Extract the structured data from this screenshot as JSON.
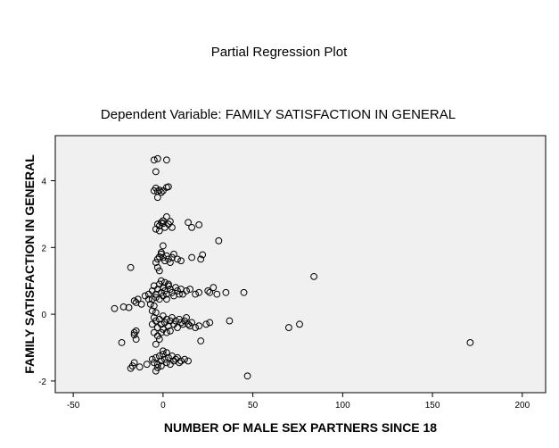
{
  "chart_data": {
    "type": "scatter",
    "title": "Partial Regression Plot",
    "subtitle": "Dependent Variable: FAMILY SATISFACTION IN GENERAL",
    "xlabel": "NUMBER OF MALE SEX PARTNERS SINCE 18",
    "ylabel": "FAMILY SATISFACTION IN GENERAL",
    "xlim": [
      -60,
      213
    ],
    "ylim": [
      -2.35,
      5.35
    ],
    "xticks": [
      -50,
      0,
      50,
      100,
      150,
      200
    ],
    "yticks": [
      -2,
      0,
      2,
      4
    ],
    "grid": false,
    "plot_background": "#f0f0f0",
    "marker": "open-circle",
    "points": [
      [
        -5,
        4.62
      ],
      [
        -3,
        4.66
      ],
      [
        2,
        4.62
      ],
      [
        -4,
        4.27
      ],
      [
        -5,
        3.7
      ],
      [
        -3,
        3.68
      ],
      [
        -2,
        3.72
      ],
      [
        0,
        3.7
      ],
      [
        2,
        3.8
      ],
      [
        3,
        3.82
      ],
      [
        -3,
        3.5
      ],
      [
        -1,
        3.65
      ],
      [
        -4,
        3.78
      ],
      [
        -4,
        2.55
      ],
      [
        -3,
        2.7
      ],
      [
        -2,
        2.65
      ],
      [
        -1,
        2.75
      ],
      [
        0,
        2.72
      ],
      [
        1,
        2.6
      ],
      [
        2,
        2.92
      ],
      [
        3,
        2.7
      ],
      [
        4,
        2.78
      ],
      [
        5,
        2.6
      ],
      [
        -2,
        2.5
      ],
      [
        0,
        2.8
      ],
      [
        14,
        2.75
      ],
      [
        16,
        2.6
      ],
      [
        20,
        2.68
      ],
      [
        31,
        2.2
      ],
      [
        0,
        2.05
      ],
      [
        -4,
        1.55
      ],
      [
        -3,
        1.65
      ],
      [
        -2,
        1.72
      ],
      [
        -1,
        1.8
      ],
      [
        0,
        1.7
      ],
      [
        1,
        1.6
      ],
      [
        2,
        1.75
      ],
      [
        3,
        1.65
      ],
      [
        4,
        1.55
      ],
      [
        5,
        1.7
      ],
      [
        6,
        1.8
      ],
      [
        8,
        1.65
      ],
      [
        10,
        1.6
      ],
      [
        16,
        1.7
      ],
      [
        21,
        1.65
      ],
      [
        22,
        1.78
      ],
      [
        -18,
        1.4
      ],
      [
        -3,
        1.4
      ],
      [
        -2,
        1.3
      ],
      [
        -1,
        1.85
      ],
      [
        -8,
        0.6
      ],
      [
        -6,
        0.7
      ],
      [
        -5,
        0.85
      ],
      [
        -4,
        0.6
      ],
      [
        -3,
        0.75
      ],
      [
        -2,
        0.9
      ],
      [
        -1,
        0.65
      ],
      [
        0,
        0.8
      ],
      [
        1,
        0.7
      ],
      [
        2,
        0.6
      ],
      [
        3,
        0.85
      ],
      [
        4,
        0.75
      ],
      [
        5,
        0.65
      ],
      [
        6,
        0.55
      ],
      [
        7,
        0.8
      ],
      [
        8,
        0.7
      ],
      [
        9,
        0.6
      ],
      [
        10,
        0.75
      ],
      [
        11,
        0.6
      ],
      [
        13,
        0.7
      ],
      [
        15,
        0.75
      ],
      [
        18,
        0.6
      ],
      [
        20,
        0.65
      ],
      [
        25,
        0.7
      ],
      [
        26,
        0.65
      ],
      [
        28,
        0.8
      ],
      [
        30,
        0.6
      ],
      [
        35,
        0.65
      ],
      [
        45,
        0.65
      ],
      [
        84,
        1.13
      ],
      [
        -4,
        0.5
      ],
      [
        -2,
        0.45
      ],
      [
        0,
        0.55
      ],
      [
        2,
        0.45
      ],
      [
        -6,
        0.45
      ],
      [
        -1,
        1.0
      ],
      [
        1,
        0.95
      ],
      [
        3,
        0.9
      ],
      [
        -27,
        0.17
      ],
      [
        -22,
        0.22
      ],
      [
        -19,
        0.2
      ],
      [
        -16,
        0.4
      ],
      [
        -14,
        0.45
      ],
      [
        -15,
        0.35
      ],
      [
        -12,
        0.3
      ],
      [
        -10,
        0.55
      ],
      [
        -8,
        0.45
      ],
      [
        -7,
        0.3
      ],
      [
        -5,
        0.25
      ],
      [
        -6,
        0.1
      ],
      [
        -4,
        0.05
      ],
      [
        -6,
        -0.3
      ],
      [
        -5,
        -0.1
      ],
      [
        -4,
        -0.2
      ],
      [
        -3,
        -0.4
      ],
      [
        -2,
        -0.15
      ],
      [
        -1,
        -0.3
      ],
      [
        0,
        -0.05
      ],
      [
        1,
        -0.25
      ],
      [
        2,
        -0.15
      ],
      [
        3,
        -0.35
      ],
      [
        4,
        -0.2
      ],
      [
        5,
        -0.1
      ],
      [
        6,
        -0.3
      ],
      [
        7,
        -0.2
      ],
      [
        8,
        -0.4
      ],
      [
        9,
        -0.15
      ],
      [
        10,
        -0.25
      ],
      [
        11,
        -0.3
      ],
      [
        12,
        -0.2
      ],
      [
        13,
        -0.1
      ],
      [
        14,
        -0.3
      ],
      [
        15,
        -0.35
      ],
      [
        16,
        -0.25
      ],
      [
        18,
        -0.4
      ],
      [
        20,
        -0.35
      ],
      [
        21,
        -0.8
      ],
      [
        24,
        -0.3
      ],
      [
        26,
        -0.25
      ],
      [
        37,
        -0.2
      ],
      [
        70,
        -0.4
      ],
      [
        76,
        -0.3
      ],
      [
        171,
        -0.85
      ],
      [
        -5,
        -0.55
      ],
      [
        -3,
        -0.65
      ],
      [
        -1,
        -0.55
      ],
      [
        0,
        -0.45
      ],
      [
        2,
        -0.55
      ],
      [
        4,
        -0.5
      ],
      [
        -4,
        -0.9
      ],
      [
        -2,
        -0.75
      ],
      [
        -15,
        -0.5
      ],
      [
        -16,
        -0.55
      ],
      [
        -15,
        -0.75
      ],
      [
        -23,
        -0.85
      ],
      [
        -16,
        -0.62
      ],
      [
        -6,
        -1.35
      ],
      [
        -5,
        -1.45
      ],
      [
        -4,
        -1.3
      ],
      [
        -3,
        -1.5
      ],
      [
        -2,
        -1.25
      ],
      [
        -1,
        -1.4
      ],
      [
        0,
        -1.2
      ],
      [
        1,
        -1.35
      ],
      [
        2,
        -1.45
      ],
      [
        3,
        -1.3
      ],
      [
        4,
        -1.5
      ],
      [
        5,
        -1.25
      ],
      [
        6,
        -1.4
      ],
      [
        7,
        -1.35
      ],
      [
        8,
        -1.3
      ],
      [
        9,
        -1.45
      ],
      [
        10,
        -1.4
      ],
      [
        12,
        -1.35
      ],
      [
        14,
        -1.4
      ],
      [
        -3,
        -1.6
      ],
      [
        -1,
        -1.55
      ],
      [
        -4,
        -1.7
      ],
      [
        -16,
        -1.45
      ],
      [
        -17,
        -1.55
      ],
      [
        -18,
        -1.62
      ],
      [
        -13,
        -1.58
      ],
      [
        -9,
        -1.5
      ],
      [
        47,
        -1.85
      ],
      [
        0,
        -1.1
      ],
      [
        2,
        -1.15
      ]
    ]
  }
}
